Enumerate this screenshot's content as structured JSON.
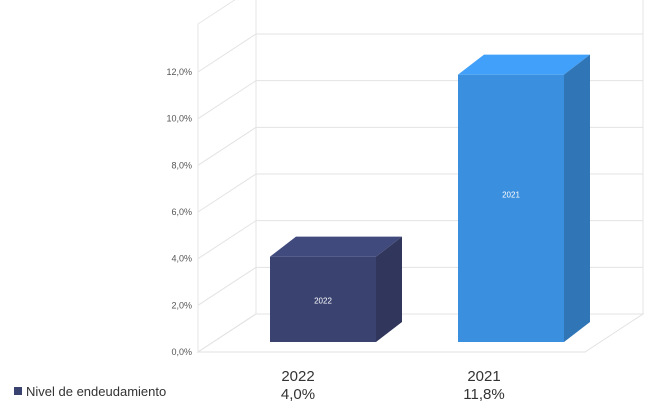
{
  "chart_data": {
    "type": "bar",
    "categories": [
      "2022",
      "2021"
    ],
    "series": [
      {
        "name": "Nivel de endeudamiento",
        "values": [
          4.0,
          11.8
        ],
        "value_labels": [
          "4,0%",
          "11,8%"
        ]
      }
    ],
    "ylim": [
      0,
      12
    ],
    "y_ticks": [
      "0,0%",
      "2,0%",
      "4,0%",
      "6,0%",
      "8,0%",
      "10,0%",
      "12,0%"
    ],
    "bar_labels": [
      "2022",
      "2021"
    ],
    "bar_colors": [
      "#3a4270",
      "#3a8fde"
    ],
    "grid": true,
    "three_d": true,
    "legend_position": "bottom-left",
    "title": "",
    "xlabel": "",
    "ylabel": ""
  }
}
